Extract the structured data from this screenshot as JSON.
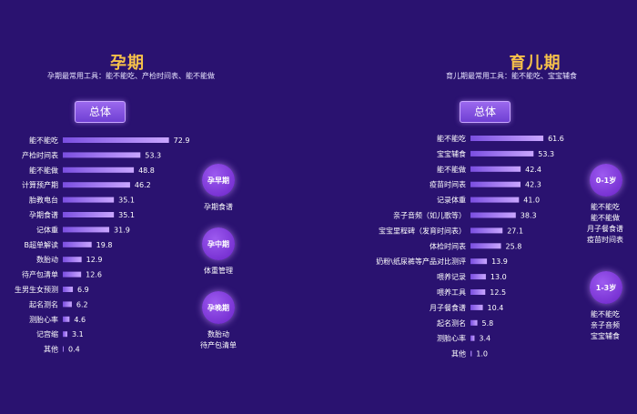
{
  "colors": {
    "background": "#2a1270",
    "title": "#f6c14a",
    "bar_start": "#7a4ee0",
    "bar_end": "#c9a6ff"
  },
  "left_panel": {
    "title": "孕期",
    "subtitle": "孕期最常用工具：能不能吃、产检时间表、能不能做",
    "pill": "总体",
    "stages": [
      {
        "label": "孕早期",
        "caption": [
          "孕期食谱"
        ]
      },
      {
        "label": "孕中期",
        "caption": [
          "体重管理"
        ]
      },
      {
        "label": "孕晚期",
        "caption": [
          "数胎动",
          "待产包清单"
        ]
      }
    ]
  },
  "right_panel": {
    "title": "育儿期",
    "subtitle": "育儿期最常用工具：能不能吃、宝宝辅食",
    "pill": "总体",
    "stages": [
      {
        "label": "0-1岁",
        "caption": [
          "能不能吃",
          "能不能做",
          "月子餐食谱",
          "疫苗时间表"
        ]
      },
      {
        "label": "1-3岁",
        "caption": [
          "能不能吃",
          "亲子音频",
          "宝宝辅食"
        ]
      }
    ]
  },
  "chart_data": [
    {
      "type": "bar",
      "orientation": "horizontal",
      "title": "孕期",
      "categories": [
        "能不能吃",
        "产检时间表",
        "能不能做",
        "计算预产期",
        "胎教电台",
        "孕期食谱",
        "记体重",
        "B超单解读",
        "数胎动",
        "待产包清单",
        "生男生女预测",
        "起名测名",
        "测胎心率",
        "记宫缩",
        "其他"
      ],
      "values": [
        72.9,
        53.3,
        48.8,
        46.2,
        35.1,
        35.1,
        31.9,
        19.8,
        12.9,
        12.6,
        6.9,
        6.2,
        4.6,
        3.1,
        0.4
      ]
    },
    {
      "type": "bar",
      "orientation": "horizontal",
      "title": "育儿期",
      "categories": [
        "能不能吃",
        "宝宝辅食",
        "能不能做",
        "疫苗时间表",
        "记录体重",
        "亲子音频（如儿歌等）",
        "宝宝里程碑（发育时间表）",
        "体检时间表",
        "奶粉\\纸尿裤等产品对比测评",
        "喂养记录",
        "喂养工具",
        "月子餐食谱",
        "起名测名",
        "测胎心率",
        "其他"
      ],
      "values": [
        61.6,
        53.3,
        42.4,
        42.3,
        41.0,
        38.3,
        27.1,
        25.8,
        13.9,
        13.0,
        12.5,
        10.4,
        5.8,
        3.4,
        1.0
      ]
    }
  ]
}
